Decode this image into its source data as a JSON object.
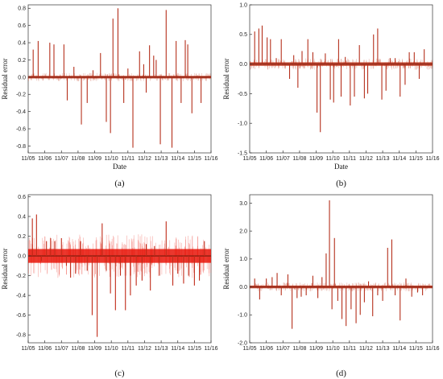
{
  "chart_data": [
    {
      "panel_label": "(a)",
      "type": "bar",
      "xlabel": "Date",
      "ylabel": "Residual error",
      "ylim": [
        -0.88,
        0.84
      ],
      "yticks": [
        0.8,
        0.6,
        0.4,
        0.2,
        0.0,
        -0.2,
        -0.4,
        -0.6,
        -0.8
      ],
      "xticks": [
        "11/05",
        "11/06",
        "11/07",
        "11/08",
        "11/09",
        "11/10",
        "11/11",
        "11/12",
        "11/13",
        "11/14",
        "11/15",
        "11/16"
      ],
      "xlim": [
        0,
        11
      ],
      "band": 0.015,
      "bar_color": "#b5301c",
      "band_color": "#c0391f",
      "grid": false,
      "x": [
        0.3,
        0.6,
        1.3,
        1.55,
        2.15,
        2.35,
        2.75,
        3.2,
        3.55,
        3.9,
        4.35,
        4.7,
        4.95,
        5.1,
        5.4,
        5.75,
        6.0,
        6.3,
        6.7,
        6.95,
        7.1,
        7.3,
        7.55,
        7.7,
        7.95,
        8.3,
        8.65,
        8.9,
        9.2,
        9.45,
        9.6,
        9.85,
        10.4
      ],
      "values": [
        0.32,
        0.42,
        0.4,
        0.38,
        0.38,
        -0.27,
        0.12,
        -0.55,
        -0.3,
        0.08,
        0.28,
        -0.52,
        -0.65,
        0.68,
        0.8,
        -0.3,
        0.1,
        -0.82,
        0.3,
        0.15,
        -0.18,
        0.37,
        0.25,
        0.2,
        -0.78,
        0.78,
        -0.82,
        0.42,
        -0.3,
        0.43,
        0.38,
        -0.42,
        -0.3
      ]
    },
    {
      "panel_label": "(b)",
      "type": "bar",
      "xlabel": "Date",
      "ylabel": "Residual error",
      "ylim": [
        -1.5,
        1.0
      ],
      "yticks": [
        1.0,
        0.5,
        0.0,
        -0.5,
        -1.0,
        -1.5
      ],
      "xticks": [
        "11/05",
        "11/06",
        "11/07",
        "11/08",
        "11/09",
        "11/10",
        "11/11",
        "11/12",
        "11/13",
        "11/14",
        "11/15",
        "11/16"
      ],
      "xlim": [
        0,
        11
      ],
      "band": 0.03,
      "bar_color": "#b5301c",
      "band_color": "#c0391f",
      "grid": false,
      "x": [
        0.3,
        0.55,
        0.75,
        1.05,
        1.25,
        1.6,
        1.9,
        2.4,
        2.65,
        2.9,
        3.15,
        3.5,
        3.8,
        4.05,
        4.25,
        4.55,
        4.85,
        5.05,
        5.35,
        5.5,
        5.75,
        6.05,
        6.3,
        6.6,
        6.9,
        7.1,
        7.45,
        7.7,
        7.95,
        8.2,
        8.45,
        8.75,
        9.05,
        9.35,
        9.6,
        9.9,
        10.2,
        10.5
      ],
      "values": [
        0.55,
        0.6,
        0.65,
        0.45,
        0.42,
        0.1,
        0.42,
        -0.25,
        0.15,
        -0.4,
        0.22,
        0.42,
        0.2,
        -0.82,
        -1.15,
        0.18,
        -0.6,
        -0.65,
        0.42,
        -0.55,
        0.12,
        -0.7,
        -0.55,
        0.32,
        -0.58,
        -0.5,
        0.5,
        0.6,
        -0.6,
        -0.45,
        0.1,
        0.1,
        -0.55,
        -0.35,
        0.2,
        0.2,
        -0.25,
        0.25
      ]
    },
    {
      "panel_label": "(c)",
      "type": "bar",
      "xlabel": "",
      "ylabel": "Residual error",
      "ylim": [
        -0.88,
        0.62
      ],
      "yticks": [
        0.6,
        0.4,
        0.2,
        0.0,
        -0.2,
        -0.4,
        -0.6,
        -0.8
      ],
      "xticks": [
        "11/05",
        "11/06",
        "11/07",
        "11/08",
        "11/09",
        "11/10",
        "11/11",
        "11/12",
        "11/13",
        "11/14",
        "11/15",
        "11/16"
      ],
      "xlim": [
        0,
        11
      ],
      "band": 0.07,
      "bar_color": "#c02a18",
      "band_color": "#e81408",
      "grid": false,
      "x": [
        0.25,
        0.5,
        0.8,
        1.1,
        1.35,
        1.6,
        2.0,
        2.3,
        2.55,
        2.85,
        3.15,
        3.55,
        3.85,
        4.15,
        4.45,
        4.7,
        4.95,
        5.25,
        5.55,
        5.85,
        6.15,
        6.5,
        6.85,
        7.1,
        7.35,
        7.6,
        7.9,
        8.3,
        8.7,
        9.0,
        9.35,
        9.65,
        10.0,
        10.3,
        10.6
      ],
      "values": [
        0.38,
        0.42,
        -0.05,
        0.15,
        0.18,
        0.15,
        0.18,
        -0.1,
        -0.22,
        -0.18,
        0.15,
        -0.15,
        -0.6,
        -0.82,
        0.33,
        -0.15,
        -0.38,
        -0.55,
        -0.2,
        -0.55,
        -0.4,
        -0.3,
        -0.25,
        0.12,
        -0.35,
        0.1,
        -0.2,
        0.35,
        -0.3,
        -0.18,
        -0.28,
        -0.2,
        -0.3,
        -0.25,
        0.15
      ]
    },
    {
      "panel_label": "(d)",
      "type": "bar",
      "xlabel": "",
      "ylabel": "Residual error",
      "ylim": [
        -2.0,
        3.3
      ],
      "yticks": [
        3.0,
        2.0,
        1.0,
        0.0,
        -1.0,
        -2.0
      ],
      "xticks": [
        "11/05",
        "11/06",
        "11/07",
        "11/08",
        "11/09",
        "11/10",
        "11/11",
        "11/12",
        "11/13",
        "11/14",
        "11/15",
        "11/16"
      ],
      "xlim": [
        0,
        11
      ],
      "band": 0.05,
      "bar_color": "#b5301c",
      "band_color": "#c0391f",
      "grid": false,
      "x": [
        0.3,
        0.6,
        1.0,
        1.35,
        1.65,
        1.9,
        2.3,
        2.55,
        2.85,
        3.1,
        3.4,
        3.8,
        4.1,
        4.35,
        4.6,
        4.8,
        4.95,
        5.1,
        5.3,
        5.55,
        5.8,
        6.1,
        6.4,
        6.65,
        6.9,
        7.15,
        7.4,
        7.7,
        8.0,
        8.3,
        8.55,
        8.75,
        9.05,
        9.4,
        9.75,
        10.1,
        10.4
      ],
      "values": [
        0.3,
        -0.45,
        0.3,
        0.35,
        0.5,
        -0.3,
        0.45,
        -1.5,
        -0.4,
        -0.35,
        -0.3,
        0.4,
        -0.4,
        0.35,
        1.2,
        3.1,
        -0.8,
        1.75,
        -0.5,
        -1.15,
        -1.4,
        -0.8,
        -1.3,
        -1.0,
        -0.55,
        0.2,
        -1.05,
        -0.3,
        -0.5,
        1.4,
        1.7,
        -0.3,
        -1.2,
        0.3,
        -0.35,
        -0.2,
        -0.3
      ]
    }
  ]
}
